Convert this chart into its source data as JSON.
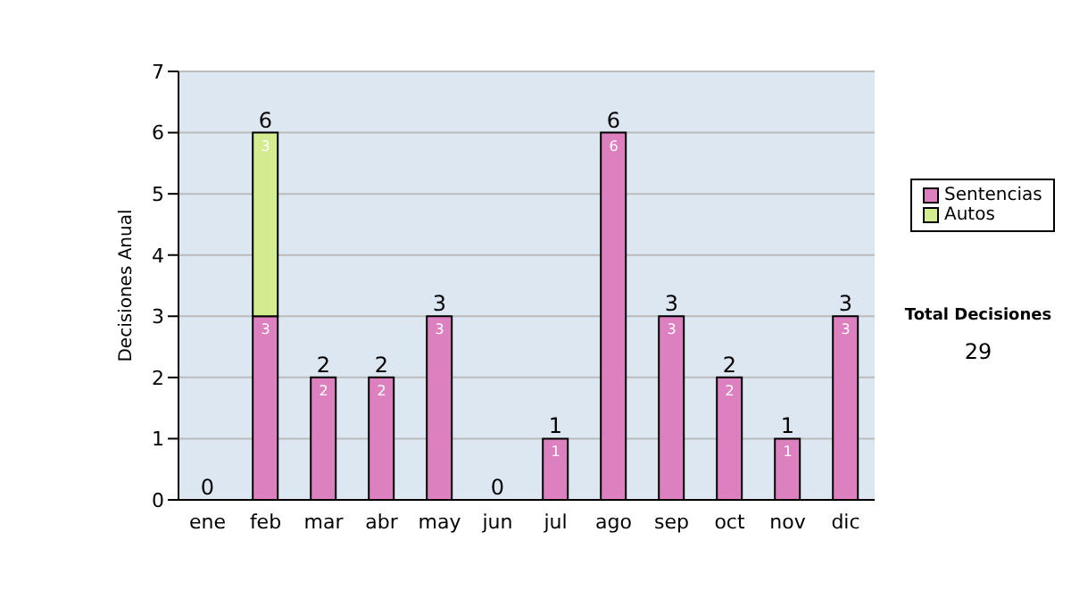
{
  "chart_data": {
    "type": "bar",
    "stacked": true,
    "ylabel": "Decisiones Anual",
    "categories": [
      "ene",
      "feb",
      "mar",
      "abr",
      "may",
      "jun",
      "jul",
      "ago",
      "sep",
      "oct",
      "nov",
      "dic"
    ],
    "series": [
      {
        "name": "Sentencias",
        "color": "#dd80c0",
        "values": [
          0,
          3,
          2,
          2,
          3,
          0,
          1,
          6,
          3,
          2,
          1,
          3
        ],
        "value_labels": [
          null,
          "3",
          "2",
          "2",
          "3",
          null,
          "1",
          "6",
          "3",
          "2",
          "1",
          "3"
        ]
      },
      {
        "name": "Autos",
        "color": "#d4ec90",
        "values": [
          0,
          3,
          0,
          0,
          0,
          0,
          0,
          0,
          0,
          0,
          0,
          0
        ],
        "value_labels": [
          null,
          "3",
          null,
          null,
          null,
          null,
          null,
          null,
          null,
          null,
          null,
          null
        ]
      }
    ],
    "totals": [
      "0",
      "6",
      "2",
      "2",
      "3",
      "0",
      "1",
      "6",
      "3",
      "2",
      "1",
      "3"
    ],
    "ylim": [
      0,
      7
    ],
    "yticks": [
      0,
      1,
      2,
      3,
      4,
      5,
      6,
      7
    ],
    "grid": "y",
    "legend": "right",
    "annotations": [
      "Total Decisiones",
      "29"
    ]
  }
}
